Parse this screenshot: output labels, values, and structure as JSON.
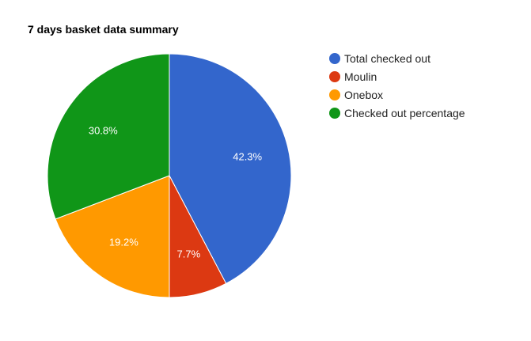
{
  "chart_data": {
    "type": "pie",
    "title": "7 days basket data summary",
    "legend_position": "right",
    "slices": [
      {
        "label": "Total checked out",
        "value": 42.3,
        "value_label": "42.3%",
        "color": "#3366cc"
      },
      {
        "label": "Moulin",
        "value": 7.7,
        "value_label": "7.7%",
        "color": "#dc3912"
      },
      {
        "label": "Onebox",
        "value": 19.2,
        "value_label": "19.2%",
        "color": "#ff9900"
      },
      {
        "label": "Checked out percentage",
        "value": 30.8,
        "value_label": "30.8%",
        "color": "#109618"
      }
    ]
  }
}
